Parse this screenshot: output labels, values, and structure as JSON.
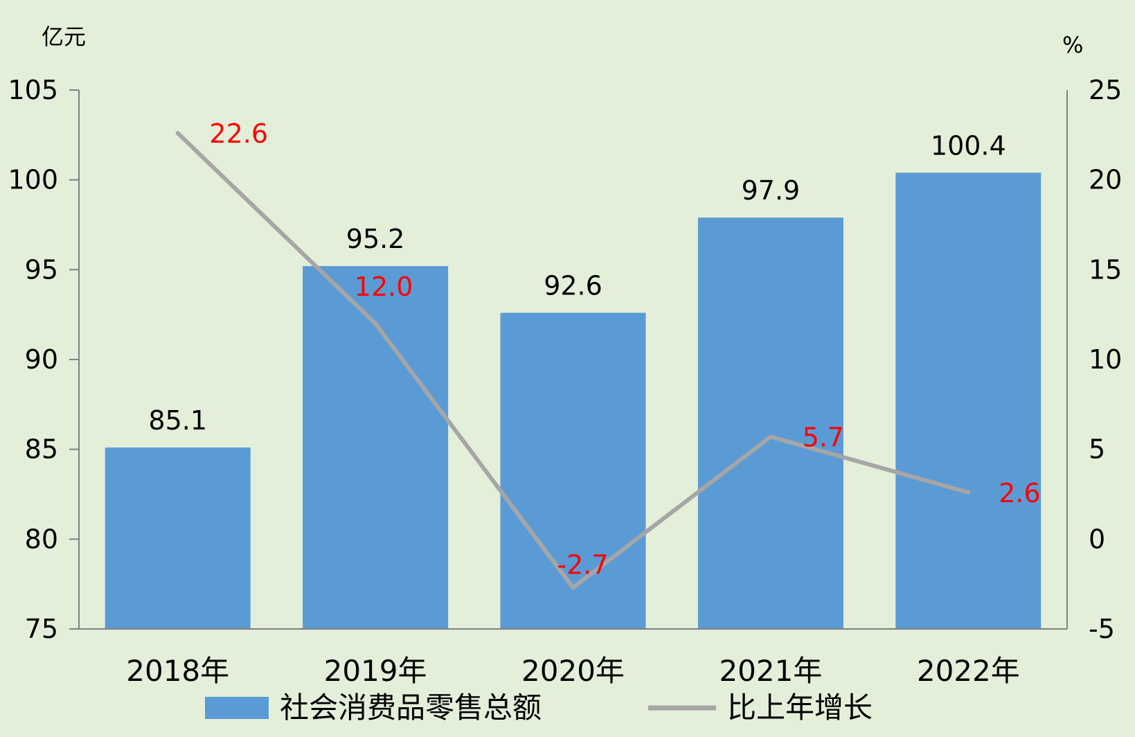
{
  "colors": {
    "bar": "#5b9bd5",
    "line": "#a6a6a6",
    "line_label": "#ff0000",
    "background": "#e3efd9",
    "axis": "#808080"
  },
  "chart_data": {
    "type": "bar",
    "categories": [
      "2018年",
      "2019年",
      "2020年",
      "2021年",
      "2022年"
    ],
    "series": [
      {
        "name": "社会消费品零售总额",
        "type": "bar",
        "axis": "left",
        "values": [
          85.1,
          95.2,
          92.6,
          97.9,
          100.4
        ]
      },
      {
        "name": "比上年增长",
        "type": "line",
        "axis": "right",
        "values": [
          22.6,
          12.0,
          -2.7,
          5.7,
          2.6
        ]
      }
    ],
    "y_left": {
      "unit": "亿元",
      "range": [
        75,
        105
      ],
      "ticks": [
        105,
        100,
        95,
        90,
        85,
        80,
        75
      ]
    },
    "y_right": {
      "unit": "%",
      "range": [
        -5,
        25
      ],
      "ticks": [
        25,
        20,
        15,
        10,
        5,
        0,
        -5
      ]
    },
    "bar_labels": [
      "85.1",
      "95.2",
      "92.6",
      "97.9",
      "100.4"
    ],
    "line_labels": [
      "22.6",
      "12.0",
      "-2.7",
      "5.7",
      "2.6"
    ],
    "grid": false,
    "legend": "bottom"
  }
}
